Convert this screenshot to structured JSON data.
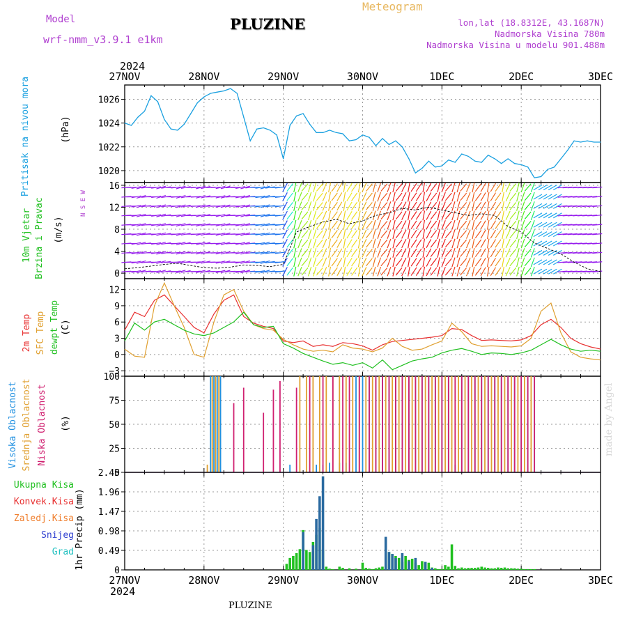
{
  "header": {
    "model_label": "Model",
    "model_name": "wrf-nmm_v3.9.1 e1km",
    "station_title": "PLUZINE",
    "meteogram_title": "Meteogram",
    "lonlat": "lon,lat (18.8312E, 43.1687N)",
    "elevation": "Nadmorska Visina 780m",
    "model_elevation": "Nadmorska Visina u modelu 901.488m",
    "watermark": "made by Angel",
    "bottom_name": "PLUZINE"
  },
  "colors": {
    "model": "#b040d0",
    "meteo": "#e8b860",
    "pressure": "#1aa0e0",
    "wind_label": "#20c020",
    "temp2m": "#e83030",
    "sfc": "#e0a030",
    "dewpt": "#20c020",
    "high_cloud": "#2090e0",
    "mid_cloud": "#e0a030",
    "low_cloud": "#d02070",
    "total_precip": "#20c020",
    "conv_precip": "#e83030",
    "ice_precip": "#f08030",
    "snow": "#3040d0",
    "hail": "#20c0c0"
  },
  "chart_data": [
    {
      "type": "line",
      "panel": "pressure",
      "ylabel": [
        "Pritisak na nivou mora",
        "(hPa)"
      ],
      "ylim": [
        1019,
        1027.2
      ],
      "yticks": [
        1020,
        1022,
        1024,
        1026
      ],
      "x_hours": [
        0,
        2,
        4,
        6,
        8,
        10,
        12,
        14,
        16,
        18,
        20,
        22,
        24,
        26,
        28,
        30,
        32,
        34,
        36,
        38,
        40,
        42,
        44,
        46,
        48,
        50,
        52,
        54,
        56,
        58,
        60,
        62,
        64,
        66,
        68,
        70,
        72,
        74,
        76,
        78,
        80,
        82,
        84,
        86,
        88,
        90,
        92,
        94,
        96,
        98,
        100,
        102,
        104,
        106,
        108,
        110,
        112,
        114,
        116,
        118,
        120,
        122,
        124,
        126,
        128,
        130,
        132,
        134,
        136,
        138,
        140,
        142,
        144
      ],
      "values": [
        1024.0,
        1023.8,
        1024.5,
        1025.0,
        1026.3,
        1025.8,
        1024.3,
        1023.5,
        1023.4,
        1023.9,
        1024.8,
        1025.7,
        1026.2,
        1026.5,
        1026.6,
        1026.7,
        1026.9,
        1026.5,
        1024.5,
        1022.5,
        1023.5,
        1023.6,
        1023.4,
        1023.0,
        1021.0,
        1023.8,
        1024.6,
        1024.8,
        1023.9,
        1023.2,
        1023.2,
        1023.4,
        1023.2,
        1023.1,
        1022.5,
        1022.6,
        1023.0,
        1022.8,
        1022.1,
        1022.7,
        1022.2,
        1022.5,
        1022.0,
        1021.0,
        1019.8,
        1020.2,
        1020.8,
        1020.3,
        1020.4,
        1020.9,
        1020.7,
        1021.4,
        1021.2,
        1020.8,
        1020.7,
        1021.3,
        1021.0,
        1020.6,
        1021.0,
        1020.6,
        1020.5,
        1020.3,
        1019.4,
        1019.5,
        1020.1,
        1020.3,
        1021.0,
        1021.7,
        1022.5,
        1022.4,
        1022.5,
        1022.4,
        1022.4
      ]
    },
    {
      "type": "line",
      "panel": "wind",
      "ylabel": [
        "10m Vjetar",
        "Brzina i Pravac",
        "(m/s)"
      ],
      "compass": "N S E W",
      "ylim": [
        -1,
        16.5
      ],
      "yticks": [
        0,
        4,
        8,
        12,
        16
      ],
      "x_hours": [
        0,
        4,
        8,
        12,
        16,
        20,
        24,
        28,
        32,
        36,
        40,
        44,
        48,
        52,
        56,
        60,
        64,
        68,
        72,
        76,
        80,
        84,
        88,
        92,
        96,
        100,
        104,
        108,
        112,
        116,
        120,
        124,
        128,
        132,
        136,
        140,
        144
      ],
      "values": [
        0.8,
        1.0,
        1.3,
        1.6,
        1.8,
        1.4,
        1.0,
        0.9,
        1.1,
        1.5,
        1.4,
        1.2,
        1.6,
        7.5,
        8.5,
        9.3,
        9.8,
        9.0,
        9.5,
        10.5,
        11.0,
        11.8,
        11.5,
        12.0,
        11.5,
        11.0,
        10.5,
        10.8,
        10.5,
        8.5,
        7.5,
        5.5,
        4.5,
        3.5,
        2.0,
        0.8,
        0.3
      ]
    },
    {
      "type": "line",
      "panel": "temperature",
      "ylabel": [
        "2m Temp",
        "SFC Temp",
        "dewpt Temp",
        "(C)"
      ],
      "ylim": [
        -4,
        14
      ],
      "yticks": [
        -3,
        0,
        3,
        6,
        9,
        12
      ],
      "x_hours": [
        0,
        3,
        6,
        9,
        12,
        15,
        18,
        21,
        24,
        27,
        30,
        33,
        36,
        39,
        42,
        45,
        48,
        51,
        54,
        57,
        60,
        63,
        66,
        69,
        72,
        75,
        78,
        81,
        84,
        87,
        90,
        93,
        96,
        99,
        102,
        105,
        108,
        111,
        114,
        117,
        120,
        123,
        126,
        129,
        132,
        135,
        138,
        141,
        144
      ],
      "series": [
        {
          "name": "2m Temp",
          "values": [
            4.5,
            7.8,
            7.0,
            10.0,
            11.0,
            9.0,
            7.0,
            5.0,
            4.0,
            7.5,
            10.0,
            11.0,
            7.0,
            5.8,
            5.2,
            4.8,
            2.5,
            2.2,
            2.5,
            1.5,
            1.8,
            1.5,
            2.2,
            2.0,
            1.6,
            0.8,
            1.8,
            2.4,
            2.6,
            2.8,
            3.0,
            3.2,
            3.5,
            4.8,
            4.6,
            3.5,
            2.6,
            2.7,
            2.6,
            2.5,
            2.7,
            3.5,
            5.5,
            6.5,
            5.0,
            3.0,
            2.0,
            1.4,
            1.0
          ]
        },
        {
          "name": "SFC Temp",
          "values": [
            1.0,
            -0.3,
            -0.5,
            9.0,
            13.2,
            9.0,
            5.0,
            0.0,
            -0.5,
            6.0,
            11.0,
            12.0,
            8.0,
            5.5,
            4.8,
            4.5,
            2.8,
            1.8,
            1.0,
            0.6,
            0.8,
            0.5,
            1.8,
            1.2,
            1.0,
            0.5,
            1.2,
            3.0,
            1.5,
            0.8,
            1.0,
            1.8,
            2.5,
            5.8,
            4.2,
            2.0,
            1.5,
            1.6,
            1.5,
            1.4,
            1.6,
            3.0,
            8.0,
            9.5,
            4.0,
            0.5,
            -0.5,
            -0.8,
            -1.0
          ]
        },
        {
          "name": "dewpt Temp",
          "values": [
            2.5,
            5.8,
            4.5,
            6.0,
            6.5,
            5.5,
            4.5,
            3.8,
            3.5,
            4.0,
            5.0,
            6.0,
            7.8,
            5.5,
            5.0,
            5.2,
            2.0,
            1.2,
            0.2,
            -0.5,
            -1.2,
            -1.8,
            -1.5,
            -2.0,
            -1.5,
            -2.5,
            -1.0,
            -2.8,
            -2.0,
            -1.2,
            -0.8,
            -0.5,
            0.3,
            0.8,
            1.1,
            0.6,
            0.0,
            0.3,
            0.2,
            0.0,
            0.3,
            0.8,
            1.8,
            2.8,
            1.8,
            1.0,
            0.6,
            0.8,
            0.6
          ]
        }
      ]
    },
    {
      "type": "bar",
      "panel": "clouds",
      "ylabel": [
        "Visoka Oblacnost",
        "Srednja Oblacnost",
        "Niska Oblacnost",
        "(%)"
      ],
      "ylim": [
        0,
        100
      ],
      "yticks": [
        0,
        25,
        50,
        75,
        100
      ],
      "series": [
        {
          "name": "Visoka Oblacnost",
          "x_hours": [
            26,
            27,
            28,
            29,
            50,
            58,
            60,
            62,
            65,
            67,
            70,
            72,
            74,
            76,
            78,
            80,
            82,
            84,
            86,
            88,
            90,
            92,
            94,
            96,
            98,
            100,
            102,
            104,
            106,
            108,
            110,
            112,
            114,
            116,
            118,
            120,
            122,
            124
          ],
          "values": [
            100,
            100,
            100,
            100,
            8,
            8,
            8,
            10,
            10,
            10,
            100,
            100,
            100,
            100,
            100,
            100,
            100,
            100,
            100,
            100,
            100,
            100,
            100,
            100,
            100,
            8,
            100,
            100,
            100,
            100,
            100,
            100,
            100,
            100,
            100,
            100,
            100,
            100
          ]
        },
        {
          "name": "Srednja Oblacnost",
          "x_hours": [
            25,
            26.5,
            27.5,
            28.5,
            53,
            55,
            57,
            59,
            61,
            63,
            65,
            67,
            69,
            71,
            73,
            75,
            77,
            79,
            81,
            83,
            85,
            87,
            89,
            91,
            93,
            95,
            97,
            99,
            101,
            103,
            105,
            107,
            109,
            111,
            113,
            115,
            117,
            119,
            121,
            123
          ],
          "values": [
            8,
            100,
            100,
            100,
            100,
            100,
            100,
            100,
            100,
            100,
            100,
            100,
            100,
            100,
            100,
            100,
            100,
            100,
            100,
            100,
            100,
            100,
            100,
            100,
            100,
            100,
            100,
            100,
            100,
            100,
            100,
            100,
            100,
            100,
            100,
            100,
            100,
            100,
            100,
            100
          ]
        },
        {
          "name": "Niska Oblacnost",
          "x_hours": [
            33,
            36,
            42,
            45,
            47,
            52,
            56,
            60,
            63,
            66,
            68,
            71,
            74,
            76,
            78,
            80,
            82,
            84,
            86,
            88,
            90,
            92,
            94,
            96,
            98,
            100,
            102,
            104,
            106,
            108,
            110,
            112,
            114,
            116,
            118,
            120,
            122,
            124
          ],
          "values": [
            72,
            88,
            62,
            86,
            95,
            88,
            100,
            100,
            100,
            100,
            100,
            100,
            100,
            100,
            100,
            100,
            100,
            100,
            100,
            100,
            100,
            100,
            100,
            100,
            100,
            100,
            100,
            100,
            100,
            100,
            100,
            100,
            100,
            100,
            100,
            100,
            100,
            100
          ]
        }
      ]
    },
    {
      "type": "bar",
      "panel": "precip",
      "ylabel": [
        "1hr Precip (mm)"
      ],
      "legend": [
        "Ukupna Kisa",
        "Konvek.Kisa",
        "Zaledj.Kisa",
        "Snijeg",
        "Grad"
      ],
      "ylim": [
        0,
        2.45
      ],
      "yticks": [
        0,
        0.49,
        0.98,
        1.47,
        1.96,
        2.45
      ],
      "series": [
        {
          "name": "Ukupna Kisa",
          "x_hours": [
            49,
            50,
            51,
            52,
            53,
            54,
            55,
            56,
            57,
            58,
            59,
            60,
            61,
            62,
            63,
            65,
            66,
            68,
            70,
            72,
            73,
            74,
            75,
            76,
            77,
            78,
            79,
            80,
            81,
            82,
            83,
            84,
            85,
            86,
            87,
            88,
            89,
            90,
            91,
            92,
            93,
            94,
            95,
            96,
            97,
            98,
            99,
            100,
            101,
            102,
            103,
            104,
            105,
            106,
            107,
            108,
            109,
            110,
            111,
            112,
            113,
            114,
            115,
            116,
            117,
            118,
            119,
            120,
            121,
            122,
            123,
            124
          ],
          "values": [
            0.15,
            0.3,
            0.35,
            0.42,
            0.52,
            1.0,
            0.5,
            0.45,
            0.7,
            0.88,
            1.05,
            0.5,
            0.08,
            0.03,
            0.02,
            0.08,
            0.05,
            0.04,
            0.03,
            0.18,
            0.05,
            0.03,
            0.02,
            0.04,
            0.06,
            0.08,
            0.05,
            0.45,
            0.4,
            0.35,
            0.3,
            0.2,
            0.35,
            0.25,
            0.28,
            0.18,
            0.12,
            0.22,
            0.2,
            0.18,
            0.06,
            0.04,
            0.02,
            0.02,
            0.12,
            0.08,
            0.64,
            0.1,
            0.04,
            0.06,
            0.04,
            0.05,
            0.05,
            0.05,
            0.06,
            0.08,
            0.06,
            0.05,
            0.04,
            0.04,
            0.06,
            0.05,
            0.06,
            0.04,
            0.04,
            0.04,
            0.03,
            0.03,
            0.02,
            0.02,
            0.02,
            0.02
          ]
        },
        {
          "name": "Snijeg",
          "x_hours": [
            54,
            57,
            58,
            59,
            60,
            79,
            80,
            81,
            82,
            84,
            86,
            88,
            91,
            93
          ],
          "values": [
            0.95,
            0.62,
            1.28,
            1.85,
            2.35,
            0.83,
            0.45,
            0.4,
            0.3,
            0.42,
            0.22,
            0.3,
            0.2,
            0.05
          ]
        }
      ]
    }
  ],
  "time_axis": {
    "year_label": "2024",
    "top_year_label": "2024",
    "ticks": [
      "27NOV",
      "28NOV",
      "29NOV",
      "30NOV",
      "1DEC",
      "2DEC",
      "3DEC"
    ]
  }
}
